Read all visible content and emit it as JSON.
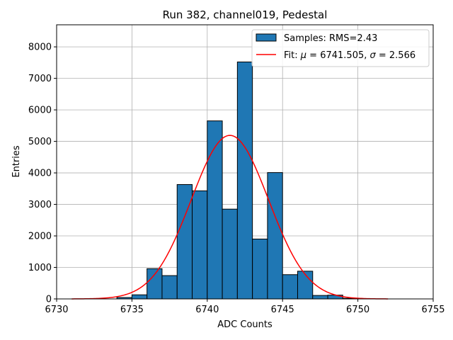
{
  "chart_data": {
    "type": "bar",
    "title": "Run 382, channel019, Pedestal",
    "xlabel": "ADC Counts",
    "ylabel": "Entries",
    "xlim": [
      6730,
      6755
    ],
    "ylim": [
      0,
      8700
    ],
    "xticks": [
      6730,
      6735,
      6740,
      6745,
      6750,
      6755
    ],
    "yticks": [
      0,
      1000,
      2000,
      3000,
      4000,
      5000,
      6000,
      7000,
      8000
    ],
    "grid": true,
    "legend_position": "top-right",
    "bin_width": 1,
    "bins": [
      {
        "x0": 6734,
        "value": 45
      },
      {
        "x0": 6735,
        "value": 130
      },
      {
        "x0": 6736,
        "value": 960
      },
      {
        "x0": 6737,
        "value": 740
      },
      {
        "x0": 6738,
        "value": 3630
      },
      {
        "x0": 6739,
        "value": 3430
      },
      {
        "x0": 6740,
        "value": 5650
      },
      {
        "x0": 6741,
        "value": 2850
      },
      {
        "x0": 6742,
        "value": 7520
      },
      {
        "x0": 6743,
        "value": 1900
      },
      {
        "x0": 6744,
        "value": 4010
      },
      {
        "x0": 6745,
        "value": 770
      },
      {
        "x0": 6746,
        "value": 880
      },
      {
        "x0": 6747,
        "value": 110
      },
      {
        "x0": 6748,
        "value": 120
      },
      {
        "x0": 6749,
        "value": 20
      }
    ],
    "fit": {
      "mu": 6741.505,
      "sigma": 2.566,
      "amplitude": 5190,
      "x_range": [
        6731,
        6752
      ]
    },
    "series": [
      {
        "name": "Samples: RMS=2.43",
        "type": "histogram",
        "color": "#1f77b4",
        "edgecolor": "#000000"
      },
      {
        "name_prefix": "Fit: ",
        "name_mu_value": " = 6741.505, ",
        "name_sigma_value": " = 2.566",
        "type": "line",
        "color": "#ff0000"
      }
    ]
  }
}
